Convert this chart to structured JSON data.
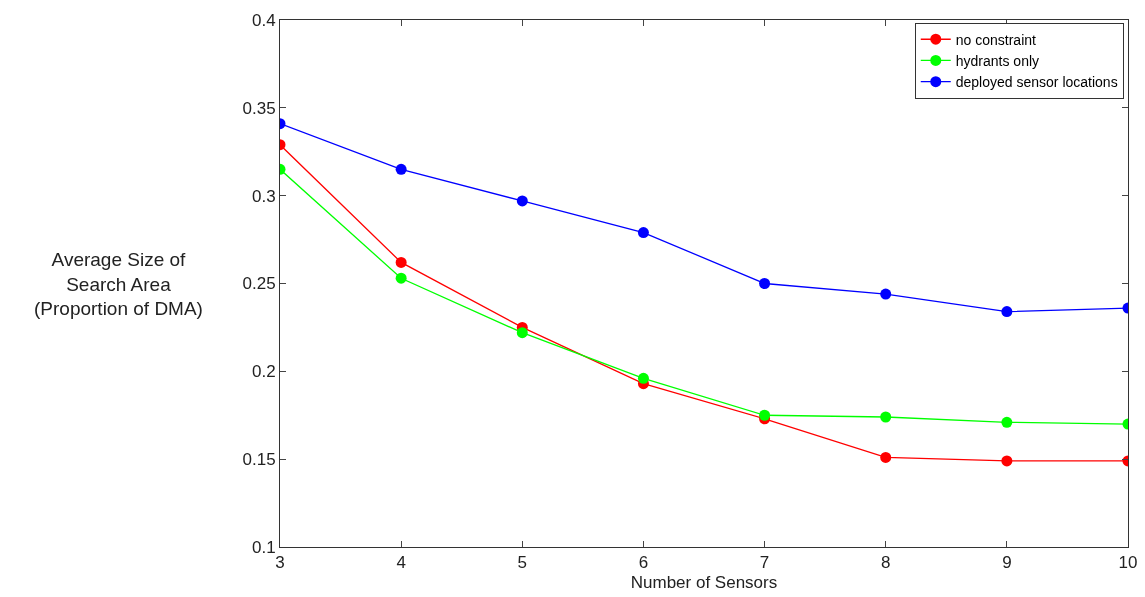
{
  "chart_data": {
    "type": "line",
    "xlabel": "Number of Sensors",
    "ylabel": "Average Size of\nSearch Area\n(Proportion of DMA)",
    "x": [
      3,
      4,
      5,
      6,
      7,
      8,
      9,
      10
    ],
    "series": [
      {
        "name": "no constraint",
        "color": "#ff0000",
        "values": [
          0.329,
          0.262,
          0.225,
          0.193,
          0.173,
          0.151,
          0.149,
          0.149
        ]
      },
      {
        "name": "hydrants only",
        "color": "#00ff00",
        "values": [
          0.315,
          0.253,
          0.222,
          0.196,
          0.175,
          0.174,
          0.171,
          0.17
        ]
      },
      {
        "name": "deployed sensor locations",
        "color": "#0000ff",
        "values": [
          0.341,
          0.315,
          0.297,
          0.279,
          0.25,
          0.244,
          0.234,
          0.236
        ]
      }
    ],
    "xlim": [
      3,
      10
    ],
    "xticks": [
      3,
      4,
      5,
      6,
      7,
      8,
      9,
      10
    ],
    "ylim": [
      0.1,
      0.4
    ],
    "yticks": [
      0.1,
      0.15,
      0.2,
      0.25,
      0.3,
      0.35,
      0.4
    ],
    "grid": false,
    "legend": "top right",
    "marker": "circle",
    "line_style": "solid"
  }
}
